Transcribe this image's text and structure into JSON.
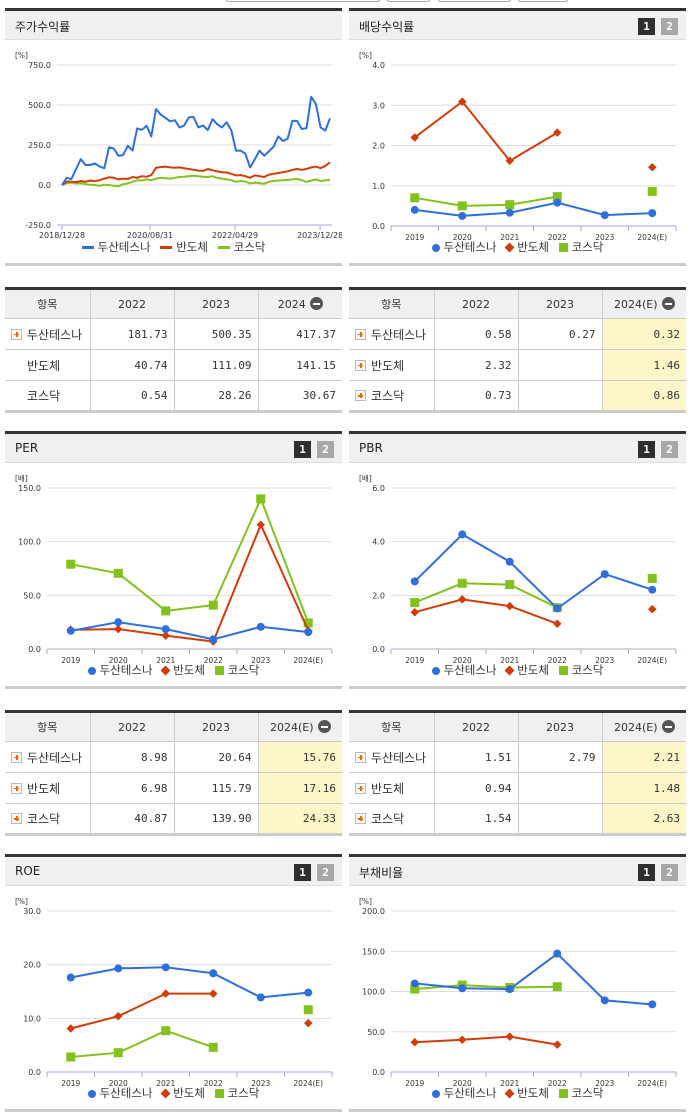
{
  "colors": {
    "company": "#2f6fdc",
    "industry": "#d23c08",
    "market": "#83c11f",
    "estimate_bg": "#fdf6c8"
  },
  "legend": {
    "company": "두산테스나",
    "industry": "반도체",
    "market": "코스닥"
  },
  "panels": {
    "stock_return": {
      "title": "주가수익률",
      "unit": "[%]"
    },
    "dividend": {
      "title": "배당수익률",
      "unit": "[%]",
      "page1": "1",
      "page2": "2"
    },
    "per": {
      "title": "PER",
      "unit": "[배]",
      "page1": "1",
      "page2": "2"
    },
    "pbr": {
      "title": "PBR",
      "unit": "[배]",
      "page1": "1",
      "page2": "2"
    },
    "roe": {
      "title": "ROE",
      "unit": "[%]",
      "page1": "1",
      "page2": "2"
    },
    "debt": {
      "title": "부채비율",
      "unit": "[%]",
      "page1": "1",
      "page2": "2"
    }
  },
  "tables": {
    "stock_return": {
      "headers": [
        "항목",
        "2022",
        "2023",
        "2024"
      ],
      "rows": [
        {
          "name": "두산테스나",
          "expand": true,
          "values": [
            "181.73",
            "500.35",
            "417.37"
          ]
        },
        {
          "name": "반도체",
          "expand": false,
          "values": [
            "40.74",
            "111.09",
            "141.15"
          ]
        },
        {
          "name": "코스닥",
          "expand": false,
          "values": [
            "0.54",
            "28.26",
            "30.67"
          ]
        }
      ]
    },
    "dividend": {
      "headers": [
        "항목",
        "2022",
        "2023",
        "2024(E)"
      ],
      "rows": [
        {
          "name": "두산테스나",
          "expand": true,
          "values": [
            "0.58",
            "0.27",
            "0.32"
          ]
        },
        {
          "name": "반도체",
          "expand": true,
          "values": [
            "2.32",
            "",
            "1.46"
          ]
        },
        {
          "name": "코스닥",
          "expand": true,
          "values": [
            "0.73",
            "",
            "0.86"
          ]
        }
      ]
    },
    "per": {
      "headers": [
        "항목",
        "2022",
        "2023",
        "2024(E)"
      ],
      "rows": [
        {
          "name": "두산테스나",
          "expand": true,
          "values": [
            "8.98",
            "20.64",
            "15.76"
          ]
        },
        {
          "name": "반도체",
          "expand": true,
          "values": [
            "6.98",
            "115.79",
            "17.16"
          ]
        },
        {
          "name": "코스닥",
          "expand": true,
          "values": [
            "40.87",
            "139.90",
            "24.33"
          ]
        }
      ]
    },
    "pbr": {
      "headers": [
        "항목",
        "2022",
        "2023",
        "2024(E)"
      ],
      "rows": [
        {
          "name": "두산테스나",
          "expand": true,
          "values": [
            "1.51",
            "2.79",
            "2.21"
          ]
        },
        {
          "name": "반도체",
          "expand": true,
          "values": [
            "0.94",
            "",
            "1.48"
          ]
        },
        {
          "name": "코스닥",
          "expand": true,
          "values": [
            "1.54",
            "",
            "2.63"
          ]
        }
      ]
    }
  },
  "chart_data": [
    {
      "id": "stock_return",
      "type": "line",
      "title": "주가수익률",
      "ylabel": "[%]",
      "ylim": [
        -250,
        750
      ],
      "yticks": [
        -250,
        250,
        500,
        750,
        0
      ],
      "ytick_labels": [
        "-250.0",
        "250.0",
        "500.0",
        "750.0",
        "0.0"
      ],
      "xtick_labels": [
        "2018/12/28",
        "2020/08/31",
        "2022/04/29",
        "2023/12/28"
      ],
      "xtick_pos": [
        0,
        0.326,
        0.641,
        0.956
      ],
      "grid": true,
      "legend_position": "bottom",
      "series": [
        {
          "name": "두산테스나",
          "values": [
            0,
            45,
            37,
            100,
            162,
            125,
            125,
            135,
            115,
            105,
            235,
            228,
            183,
            187,
            245,
            215,
            354,
            345,
            370,
            304,
            475,
            440,
            420,
            398,
            405,
            360,
            372,
            423,
            425,
            360,
            372,
            343,
            412,
            380,
            360,
            392,
            342,
            215,
            215,
            195,
            110,
            160,
            215,
            183,
            210,
            240,
            304,
            275,
            290,
            402,
            400,
            350,
            355,
            552,
            506,
            360,
            340,
            417
          ]
        },
        {
          "name": "반도체",
          "values": [
            0,
            22,
            20,
            18,
            25,
            20,
            28,
            24,
            30,
            40,
            48,
            45,
            35,
            40,
            38,
            50,
            45,
            55,
            52,
            62,
            108,
            112,
            115,
            110,
            108,
            110,
            105,
            100,
            95,
            90,
            88,
            100,
            92,
            85,
            80,
            78,
            70,
            60,
            62,
            55,
            45,
            60,
            55,
            50,
            65,
            70,
            75,
            80,
            85,
            95,
            100,
            95,
            100,
            110,
            115,
            105,
            120,
            141
          ]
        },
        {
          "name": "코스닥",
          "values": [
            0,
            12,
            15,
            10,
            12,
            5,
            2,
            0,
            -5,
            2,
            0,
            -5,
            -8,
            5,
            10,
            20,
            30,
            28,
            35,
            30,
            40,
            45,
            42,
            40,
            45,
            50,
            52,
            55,
            58,
            55,
            52,
            50,
            55,
            45,
            40,
            35,
            30,
            20,
            25,
            22,
            10,
            15,
            12,
            8,
            20,
            25,
            28,
            30,
            32,
            35,
            38,
            30,
            20,
            28,
            35,
            25,
            30,
            31
          ]
        }
      ]
    },
    {
      "id": "dividend",
      "type": "line",
      "title": "배당수익률",
      "ylabel": "[%]",
      "ylim": [
        0,
        4
      ],
      "yticks": [
        0,
        1,
        2,
        3,
        4
      ],
      "ytick_labels": [
        "0.0",
        "1.0",
        "2.0",
        "3.0",
        "4.0"
      ],
      "categories": [
        "2019",
        "2020",
        "2021",
        "2022",
        "2023",
        "2024(E)"
      ],
      "grid": true,
      "legend_position": "bottom",
      "connect_estimate": false,
      "series": [
        {
          "name": "두산테스나",
          "values": [
            0.4,
            0.25,
            0.33,
            0.58,
            0.27,
            0.32
          ]
        },
        {
          "name": "반도체",
          "values": [
            2.2,
            3.09,
            1.62,
            2.32,
            null,
            1.46
          ]
        },
        {
          "name": "코스닥",
          "values": [
            0.7,
            0.5,
            0.53,
            0.73,
            null,
            0.86
          ]
        }
      ]
    },
    {
      "id": "per",
      "type": "line",
      "title": "PER",
      "ylabel": "[배]",
      "ylim": [
        0,
        150
      ],
      "yticks": [
        0,
        50,
        100,
        150
      ],
      "ytick_labels": [
        "0.0",
        "50.0",
        "100.0",
        "150.0"
      ],
      "categories": [
        "2019",
        "2020",
        "2021",
        "2022",
        "2023",
        "2024(E)"
      ],
      "grid": true,
      "legend_position": "bottom",
      "series": [
        {
          "name": "두산테스나",
          "values": [
            17.0,
            25.0,
            18.5,
            8.98,
            20.64,
            15.76
          ]
        },
        {
          "name": "반도체",
          "values": [
            18.0,
            18.5,
            12.5,
            6.98,
            115.79,
            17.16
          ]
        },
        {
          "name": "코스닥",
          "values": [
            79.0,
            70.5,
            35.5,
            40.87,
            139.9,
            24.33
          ]
        }
      ]
    },
    {
      "id": "pbr",
      "type": "line",
      "title": "PBR",
      "ylabel": "[배]",
      "ylim": [
        0,
        6
      ],
      "yticks": [
        0,
        2,
        4,
        6
      ],
      "ytick_labels": [
        "0.0",
        "2.0",
        "4.0",
        "6.0"
      ],
      "categories": [
        "2019",
        "2020",
        "2021",
        "2022",
        "2023",
        "2024(E)"
      ],
      "grid": true,
      "legend_position": "bottom",
      "series": [
        {
          "name": "두산테스나",
          "values": [
            2.52,
            4.27,
            3.25,
            1.51,
            2.79,
            2.21
          ]
        },
        {
          "name": "반도체",
          "values": [
            1.37,
            1.85,
            1.6,
            0.94,
            null,
            1.48
          ]
        },
        {
          "name": "코스닥",
          "values": [
            1.73,
            2.45,
            2.4,
            1.54,
            null,
            2.63
          ]
        }
      ]
    },
    {
      "id": "roe",
      "type": "line",
      "title": "ROE",
      "ylabel": "[%]",
      "ylim": [
        0,
        30
      ],
      "yticks": [
        0,
        10,
        20,
        30
      ],
      "ytick_labels": [
        "0.0",
        "10.0",
        "20.0",
        "30.0"
      ],
      "categories": [
        "2019",
        "2020",
        "2021",
        "2022",
        "2023",
        "2024(E)"
      ],
      "grid": true,
      "legend_position": "bottom",
      "series": [
        {
          "name": "두산테스나",
          "values": [
            17.6,
            19.3,
            19.5,
            18.4,
            13.9,
            14.8
          ]
        },
        {
          "name": "반도체",
          "values": [
            8.1,
            10.4,
            14.6,
            14.6,
            null,
            9.1
          ]
        },
        {
          "name": "코스닥",
          "values": [
            2.8,
            3.6,
            7.7,
            4.6,
            null,
            11.6
          ]
        }
      ]
    },
    {
      "id": "debt",
      "type": "line",
      "title": "부채비율",
      "ylabel": "[%]",
      "ylim": [
        0,
        200
      ],
      "yticks": [
        0,
        50,
        100,
        150,
        200
      ],
      "ytick_labels": [
        "0.0",
        "50.0",
        "100.0",
        "150.0",
        "200.0"
      ],
      "categories": [
        "2019",
        "2020",
        "2021",
        "2022",
        "2023",
        "2024(E)"
      ],
      "grid": true,
      "legend_position": "bottom",
      "series": [
        {
          "name": "두산테스나",
          "values": [
            110,
            104,
            103,
            147,
            89,
            84
          ]
        },
        {
          "name": "반도체",
          "values": [
            37,
            40,
            44,
            34,
            null,
            null
          ]
        },
        {
          "name": "코스닥",
          "values": [
            103,
            108,
            105,
            106,
            null,
            null
          ]
        }
      ]
    }
  ]
}
